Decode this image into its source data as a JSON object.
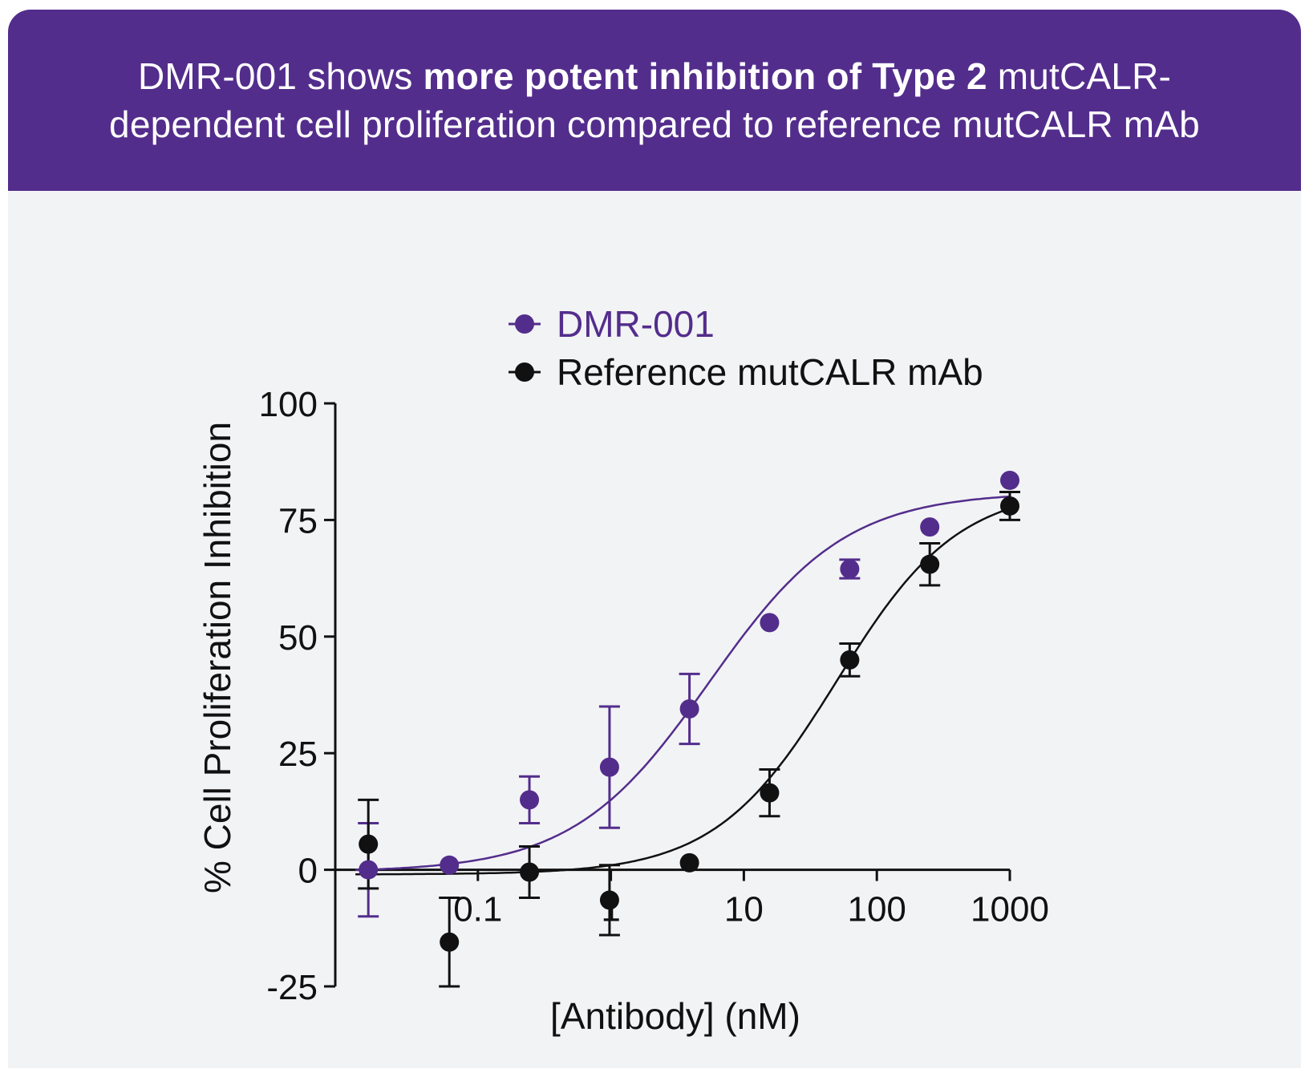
{
  "header": {
    "line1_pre": "DMR-001 shows ",
    "line1_bold": "more potent inhibition of Type 2",
    "line1_post": " mutCALR-",
    "line2": "dependent cell proliferation compared to reference mutCALR mAb"
  },
  "chart_data": {
    "type": "scatter",
    "xlabel": "[Antibody] (nM)",
    "ylabel": "% Cell Proliferation Inhibition",
    "xscale": "log",
    "xlim": [
      0.01,
      1000
    ],
    "ylim": [
      -25,
      100
    ],
    "x_ticks": [
      {
        "value": 0.1,
        "label": "0.1"
      },
      {
        "value": 1,
        "label": "1"
      },
      {
        "value": 10,
        "label": "10"
      },
      {
        "value": 100,
        "label": "100"
      },
      {
        "value": 1000,
        "label": "1000"
      }
    ],
    "y_ticks": [
      {
        "value": -25,
        "label": "-25"
      },
      {
        "value": 0,
        "label": "0"
      },
      {
        "value": 25,
        "label": "25"
      },
      {
        "value": 50,
        "label": "50"
      },
      {
        "value": 75,
        "label": "75"
      },
      {
        "value": 100,
        "label": "100"
      }
    ],
    "legend_position": "top",
    "series": [
      {
        "name": "DMR-001",
        "color": "#532d8c",
        "points": [
          {
            "x": 0.015,
            "y": 0,
            "err": 10
          },
          {
            "x": 0.061,
            "y": 1,
            "err": 0.5
          },
          {
            "x": 0.244,
            "y": 15,
            "err": 5
          },
          {
            "x": 0.977,
            "y": 22,
            "err": 13
          },
          {
            "x": 3.9,
            "y": 34.5,
            "err": 7.5
          },
          {
            "x": 15.6,
            "y": 53,
            "err": 1
          },
          {
            "x": 62.5,
            "y": 64.5,
            "err": 2
          },
          {
            "x": 250,
            "y": 73.5,
            "err": 1
          },
          {
            "x": 1000,
            "y": 83.5,
            "err": 1
          }
        ],
        "fit": {
          "bottom": -0.5,
          "top": 81,
          "ec50": 5.5,
          "hill": 0.85
        }
      },
      {
        "name": "Reference mutCALR mAb",
        "color": "#111111",
        "points": [
          {
            "x": 0.015,
            "y": 5.5,
            "err": 9.5
          },
          {
            "x": 0.061,
            "y": -15.5,
            "err": 9.5
          },
          {
            "x": 0.244,
            "y": -0.5,
            "err": 5.5
          },
          {
            "x": 0.977,
            "y": -6.5,
            "err": 7.5
          },
          {
            "x": 3.9,
            "y": 1.5,
            "err": 1
          },
          {
            "x": 15.6,
            "y": 16.5,
            "err": 5
          },
          {
            "x": 62.5,
            "y": 45,
            "err": 3.5
          },
          {
            "x": 250,
            "y": 65.5,
            "err": 4.5
          },
          {
            "x": 1000,
            "y": 78,
            "err": 3
          }
        ],
        "fit": {
          "bottom": -1,
          "top": 82,
          "ec50": 50,
          "hill": 0.95
        }
      }
    ]
  }
}
